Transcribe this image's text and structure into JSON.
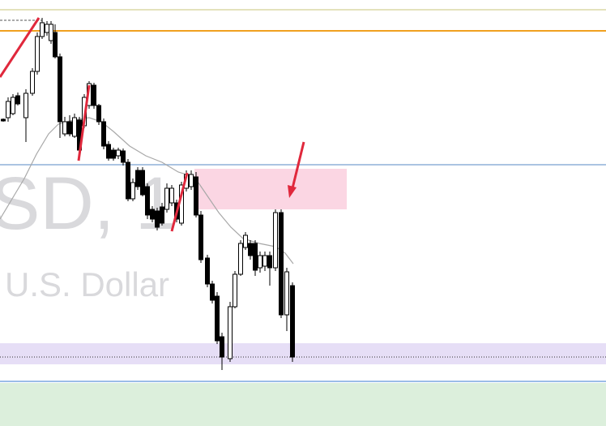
{
  "watermark": {
    "symbol": "SD, 1",
    "description": "U.S. Dollar"
  }
}
